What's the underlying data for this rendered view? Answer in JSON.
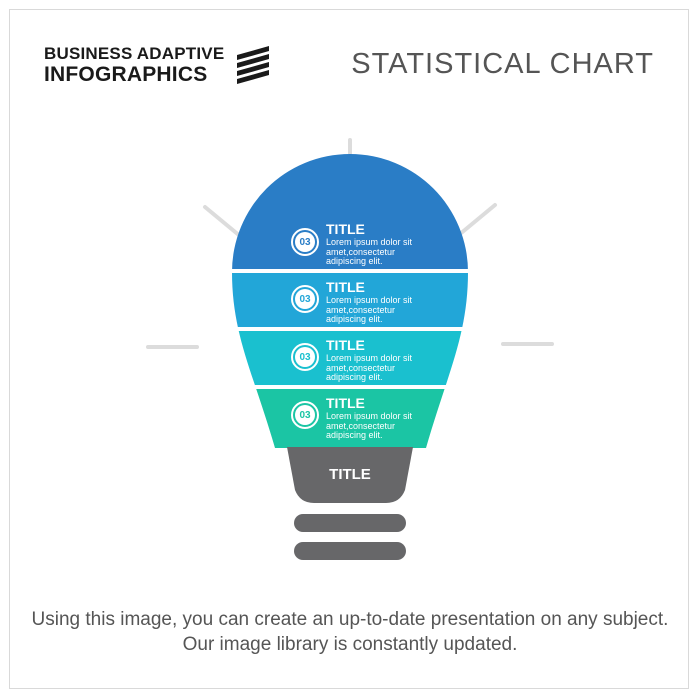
{
  "brand": {
    "line1": "BUSINESS ADAPTIVE",
    "line2": "INFOGRAPHICS"
  },
  "header": {
    "title": "STATISTICAL CHART"
  },
  "bulb": {
    "sections": [
      {
        "number": "03",
        "title": "TITLE",
        "text": "Lorem ipsum dolor sit amet,consectetur adipiscing elit.",
        "color": "#2a7dc6"
      },
      {
        "number": "03",
        "title": "TITLE",
        "text": "Lorem ipsum dolor sit amet,consectetur adipiscing elit.",
        "color": "#22a6d8"
      },
      {
        "number": "03",
        "title": "TITLE",
        "text": "Lorem ipsum dolor sit amet,consectetur adipiscing elit.",
        "color": "#1ac0cf"
      },
      {
        "number": "03",
        "title": "TITLE",
        "text": "Lorem ipsum dolor sit amet,consectetur adipiscing elit.",
        "color": "#1bc5a4"
      }
    ],
    "base_title": "TITLE",
    "base_color": "#676769",
    "ray_color": "#dcdcdc"
  },
  "footer": {
    "text": "Using this image, you can create an up-to-date presentation on any subject. Our image library is constantly updated."
  }
}
